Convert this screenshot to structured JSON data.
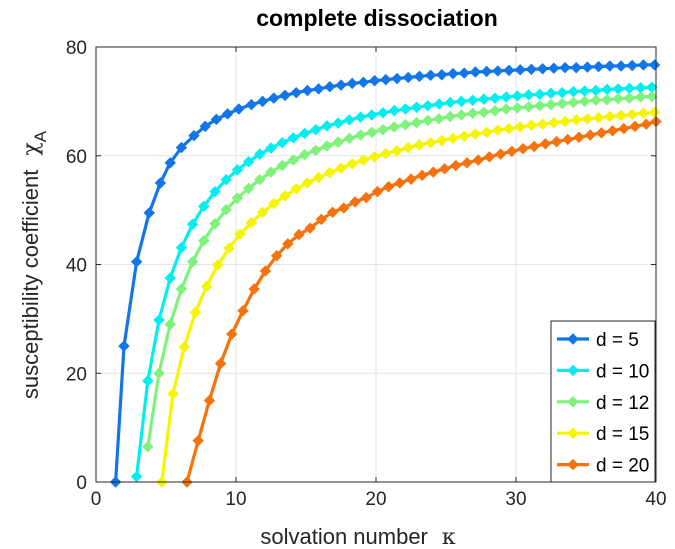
{
  "chart_data": {
    "type": "line",
    "title": "complete dissociation",
    "xlabel": "solvation number",
    "xlabel_symbol": "κ",
    "ylabel": "susceptibility coefficient",
    "ylabel_symbol": "χ",
    "ylabel_subscript": "A",
    "xlim": [
      0,
      40
    ],
    "ylim": [
      0,
      80
    ],
    "xticks": [
      0,
      10,
      20,
      30,
      40
    ],
    "yticks": [
      0,
      20,
      40,
      60,
      80
    ],
    "grid": true,
    "legend_position": "bottom-right",
    "series": [
      {
        "name": "d = 5",
        "color": "#1276e8",
        "x": [
          1.4,
          2,
          2.9,
          3.8,
          4.6,
          5.3,
          6.1,
          7,
          7.8,
          8.6,
          9.4,
          10.2,
          11.1,
          11.9,
          12.7,
          13.5,
          14.3,
          15.1,
          15.9,
          16.7,
          17.5,
          18.3,
          19.1,
          19.9,
          20.7,
          21.5,
          22.3,
          23.1,
          23.9,
          24.7,
          25.5,
          26.3,
          27.1,
          27.9,
          28.7,
          29.5,
          30.3,
          31.1,
          31.9,
          32.7,
          33.5,
          34.3,
          35.1,
          35.9,
          36.7,
          37.5,
          38.3,
          39.1,
          39.9
        ],
        "y": [
          0,
          25,
          40.5,
          49.5,
          55,
          58.7,
          61.5,
          63.7,
          65.4,
          66.7,
          67.7,
          68.6,
          69.4,
          70,
          70.6,
          71.1,
          71.6,
          72,
          72.3,
          72.7,
          73,
          73.3,
          73.5,
          73.8,
          74,
          74.2,
          74.4,
          74.6,
          74.8,
          74.9,
          75.1,
          75.2,
          75.4,
          75.5,
          75.6,
          75.7,
          75.8,
          75.9,
          76,
          76.1,
          76.2,
          76.2,
          76.3,
          76.4,
          76.5,
          76.5,
          76.6,
          76.7,
          76.7
        ]
      },
      {
        "name": "d = 10",
        "color": "#00efef",
        "x": [
          2.9,
          3.7,
          4.5,
          5.3,
          6.1,
          6.9,
          7.7,
          8.5,
          9.3,
          10.1,
          10.9,
          11.7,
          12.5,
          13.3,
          14.1,
          14.9,
          15.7,
          16.5,
          17.3,
          18.1,
          18.9,
          19.7,
          20.5,
          21.3,
          22.1,
          22.9,
          23.7,
          24.5,
          25.3,
          26.1,
          26.9,
          27.7,
          28.5,
          29.3,
          30.1,
          30.9,
          31.7,
          32.5,
          33.3,
          34.1,
          34.9,
          35.7,
          36.5,
          37.3,
          38.1,
          38.9,
          39.7
        ],
        "y": [
          1,
          18.6,
          29.8,
          37.5,
          43.1,
          47.4,
          50.7,
          53.4,
          55.6,
          57.4,
          58.9,
          60.3,
          61.4,
          62.4,
          63.3,
          64.1,
          64.8,
          65.5,
          66,
          66.6,
          67.1,
          67.5,
          67.9,
          68.3,
          68.6,
          68.9,
          69.2,
          69.5,
          69.8,
          70,
          70.2,
          70.4,
          70.6,
          70.8,
          71,
          71.2,
          71.3,
          71.5,
          71.6,
          71.8,
          71.9,
          72,
          72.2,
          72.3,
          72.4,
          72.5,
          72.6
        ]
      },
      {
        "name": "d = 12",
        "color": "#7ef27a",
        "x": [
          3.7,
          4.5,
          5.3,
          6.1,
          6.9,
          7.7,
          8.5,
          9.3,
          10.1,
          10.9,
          11.7,
          12.5,
          13.3,
          14.1,
          14.9,
          15.7,
          16.5,
          17.3,
          18.1,
          18.9,
          19.7,
          20.5,
          21.3,
          22.1,
          22.9,
          23.7,
          24.5,
          25.3,
          26.1,
          26.9,
          27.7,
          28.5,
          29.3,
          30.1,
          30.9,
          31.7,
          32.5,
          33.3,
          34.1,
          34.9,
          35.7,
          36.5,
          37.3,
          38.1,
          38.9,
          39.7
        ],
        "y": [
          6.5,
          20,
          29,
          35.5,
          40.5,
          44.4,
          47.5,
          50.1,
          52.2,
          54,
          55.6,
          57,
          58.2,
          59.2,
          60.2,
          61,
          61.8,
          62.5,
          63.2,
          63.8,
          64.3,
          64.8,
          65.3,
          65.7,
          66.1,
          66.5,
          66.8,
          67.2,
          67.5,
          67.8,
          68,
          68.3,
          68.6,
          68.8,
          69,
          69.2,
          69.4,
          69.6,
          69.8,
          70,
          70.2,
          70.3,
          70.5,
          70.6,
          70.8,
          70.9
        ]
      },
      {
        "name": "d = 15",
        "color": "#f5f500",
        "x": [
          4.7,
          5.5,
          6.3,
          7.1,
          7.9,
          8.7,
          9.5,
          10.3,
          11.1,
          11.9,
          12.7,
          13.5,
          14.3,
          15.1,
          15.9,
          16.7,
          17.5,
          18.3,
          19.1,
          19.9,
          20.7,
          21.5,
          22.3,
          23.1,
          23.9,
          24.7,
          25.5,
          26.3,
          27.1,
          27.9,
          28.7,
          29.5,
          30.3,
          31.1,
          31.9,
          32.7,
          33.5,
          34.3,
          35.1,
          35.9,
          36.7,
          37.5,
          38.3,
          39.1,
          39.9
        ],
        "y": [
          0,
          16.2,
          24.8,
          31.2,
          36,
          39.9,
          43,
          45.6,
          47.7,
          49.6,
          51.2,
          52.6,
          53.9,
          55,
          56,
          56.9,
          57.7,
          58.5,
          59.2,
          59.8,
          60.4,
          60.9,
          61.5,
          62,
          62.4,
          62.8,
          63.2,
          63.6,
          64,
          64.3,
          64.7,
          65,
          65.3,
          65.6,
          65.8,
          66.1,
          66.3,
          66.6,
          66.8,
          67,
          67.2,
          67.4,
          67.6,
          67.8,
          68
        ]
      },
      {
        "name": "d = 20",
        "color": "#f5720d",
        "x": [
          6.5,
          7.3,
          8.1,
          8.9,
          9.7,
          10.5,
          11.3,
          12.1,
          12.9,
          13.7,
          14.5,
          15.3,
          16.1,
          16.9,
          17.7,
          18.5,
          19.3,
          20.1,
          20.9,
          21.7,
          22.5,
          23.3,
          24.1,
          24.9,
          25.7,
          26.5,
          27.3,
          28.1,
          28.9,
          29.7,
          30.5,
          31.3,
          32.1,
          32.9,
          33.7,
          34.5,
          35.3,
          36.1,
          36.9,
          37.7,
          38.5,
          39.3,
          40
        ],
        "y": [
          0,
          7.6,
          15,
          21.8,
          27.2,
          31.5,
          35.5,
          38.8,
          41.6,
          43.8,
          45.5,
          46.7,
          48.3,
          49.6,
          50.4,
          51.5,
          52.3,
          53.4,
          54.3,
          55,
          55.7,
          56.4,
          57,
          57.6,
          58.2,
          58.7,
          59.2,
          59.8,
          60.3,
          60.8,
          61.3,
          61.7,
          62.2,
          62.6,
          63,
          63.4,
          63.8,
          64.2,
          64.6,
          65,
          65.4,
          65.8,
          66.3
        ]
      }
    ]
  }
}
